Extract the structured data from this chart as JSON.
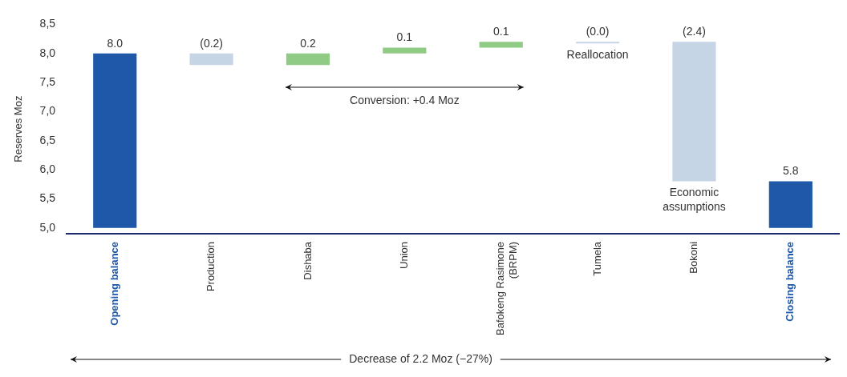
{
  "chart_data": {
    "type": "bar",
    "ylabel": "Reserves Moz",
    "categories": [
      "Opening balance",
      "Production",
      "Dishaba",
      "Union",
      "Bafokeng Rasimone (BRPM)",
      "Tumela",
      "Bokoni",
      "Closing balance"
    ],
    "base": [
      5.0,
      8.0,
      7.8,
      8.0,
      8.1,
      8.2,
      8.2,
      5.0
    ],
    "values": [
      3.0,
      -0.2,
      0.2,
      0.1,
      0.1,
      -0.03,
      -2.4,
      0.8
    ],
    "value_labels": [
      "8.0",
      "(0.2)",
      "0.2",
      "0.1",
      "0.1",
      "(0.0)",
      "(2.4)",
      "5.8"
    ],
    "colors": [
      "#1f58a8",
      "#c5d5e5",
      "#8fcb85",
      "#8fcb85",
      "#8fcb85",
      "#c5d5e5",
      "#c5d5e5",
      "#1f58a8"
    ],
    "ylim": [
      4.9,
      8.5
    ],
    "yticks": [
      {
        "value": 5.0,
        "label": "5,0"
      },
      {
        "value": 5.5,
        "label": "5,5"
      },
      {
        "value": 6.0,
        "label": "6,0"
      },
      {
        "value": 6.5,
        "label": "6,5"
      },
      {
        "value": 7.0,
        "label": "7,0"
      },
      {
        "value": 7.5,
        "label": "7,5"
      },
      {
        "value": 8.0,
        "label": "8,0"
      },
      {
        "value": 8.5,
        "label": "8,5"
      }
    ],
    "grid": false,
    "legend": false,
    "annotations": [
      "Conversion: +0.4 Moz",
      "Reallocation",
      "Economic assumptions",
      "Decrease of 2.2 Moz (−27%)"
    ]
  }
}
